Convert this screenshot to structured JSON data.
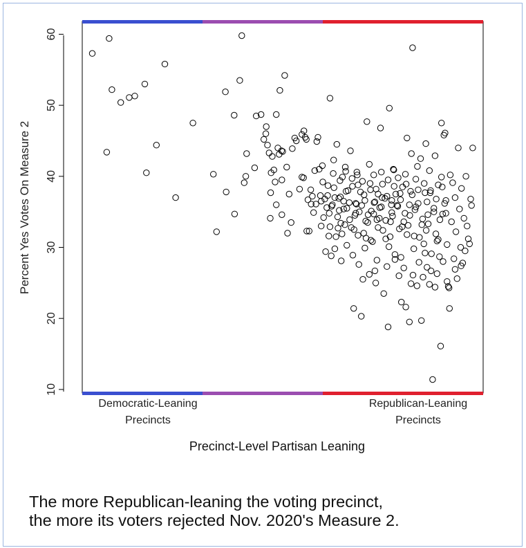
{
  "chart_data": {
    "type": "scatter",
    "xlabel": "Precinct-Level Partisan Leaning",
    "ylabel": "Percent Yes Votes On Measure 2",
    "ylim": [
      9.5,
      61.8
    ],
    "yticks": [
      10,
      20,
      30,
      40,
      50,
      60
    ],
    "x_category_labels": [
      {
        "line1": "Democratic-Leaning",
        "line2": "Precincts"
      },
      {
        "line1": "Republican-Leaning",
        "line2": "Precincts"
      }
    ],
    "x_units": "relative partisan leaning, 0 = most Democratic-leaning, 1 = most Republican-leaning",
    "xlim": [
      0,
      1
    ],
    "axis_color_bands": [
      {
        "from": 0.0,
        "to": 0.3,
        "color": "#3a4fd0"
      },
      {
        "from": 0.3,
        "to": 0.6,
        "color": "#9b4db0"
      },
      {
        "from": 0.6,
        "to": 1.0,
        "color": "#e0202e"
      }
    ],
    "grid": false,
    "points": [
      [
        0.025,
        57.3
      ],
      [
        0.067,
        59.4
      ],
      [
        0.074,
        52.2
      ],
      [
        0.061,
        43.4
      ],
      [
        0.096,
        50.4
      ],
      [
        0.117,
        51.1
      ],
      [
        0.131,
        51.3
      ],
      [
        0.156,
        53.0
      ],
      [
        0.185,
        44.4
      ],
      [
        0.206,
        55.8
      ],
      [
        0.16,
        40.5
      ],
      [
        0.233,
        37.0
      ],
      [
        0.276,
        47.5
      ],
      [
        0.327,
        40.3
      ],
      [
        0.335,
        32.2
      ],
      [
        0.357,
        51.9
      ],
      [
        0.359,
        37.8
      ],
      [
        0.379,
        48.6
      ],
      [
        0.38,
        34.7
      ],
      [
        0.393,
        53.5
      ],
      [
        0.398,
        59.8
      ],
      [
        0.404,
        39.1
      ],
      [
        0.41,
        43.2
      ],
      [
        0.408,
        40.0
      ],
      [
        0.43,
        41.2
      ],
      [
        0.434,
        48.5
      ],
      [
        0.446,
        48.7
      ],
      [
        0.453,
        45.2
      ],
      [
        0.458,
        46.0
      ],
      [
        0.459,
        47.0
      ],
      [
        0.462,
        44.4
      ],
      [
        0.466,
        43.3
      ],
      [
        0.471,
        40.5
      ],
      [
        0.474,
        42.8
      ],
      [
        0.478,
        40.9
      ],
      [
        0.484,
        48.7
      ],
      [
        0.488,
        44.0
      ],
      [
        0.491,
        43.1
      ],
      [
        0.493,
        52.1
      ],
      [
        0.497,
        43.6
      ],
      [
        0.498,
        39.5
      ],
      [
        0.5,
        43.5
      ],
      [
        0.505,
        54.2
      ],
      [
        0.469,
        34.1
      ],
      [
        0.47,
        37.7
      ],
      [
        0.481,
        39.2
      ],
      [
        0.484,
        36.0
      ],
      [
        0.498,
        34.6
      ],
      [
        0.51,
        41.3
      ],
      [
        0.512,
        32.0
      ],
      [
        0.516,
        37.5
      ],
      [
        0.521,
        33.5
      ],
      [
        0.524,
        43.9
      ],
      [
        0.53,
        45.4
      ],
      [
        0.534,
        45.0
      ],
      [
        0.542,
        38.2
      ],
      [
        0.548,
        45.9
      ],
      [
        0.548,
        39.9
      ],
      [
        0.552,
        39.8
      ],
      [
        0.553,
        46.4
      ],
      [
        0.556,
        45.5
      ],
      [
        0.559,
        45.2
      ],
      [
        0.56,
        32.3
      ],
      [
        0.563,
        36.7
      ],
      [
        0.566,
        32.3
      ],
      [
        0.57,
        38.1
      ],
      [
        0.571,
        36.1
      ],
      [
        0.574,
        37.2
      ],
      [
        0.577,
        34.9
      ],
      [
        0.58,
        40.8
      ],
      [
        0.583,
        36.1
      ],
      [
        0.585,
        44.9
      ],
      [
        0.588,
        45.5
      ],
      [
        0.591,
        41.0
      ],
      [
        0.594,
        37.3
      ],
      [
        0.596,
        33.0
      ],
      [
        0.599,
        41.5
      ],
      [
        0.602,
        34.2
      ],
      [
        0.605,
        36.8
      ],
      [
        0.607,
        29.4
      ],
      [
        0.61,
        35.6
      ],
      [
        0.613,
        38.7
      ],
      [
        0.616,
        34.8
      ],
      [
        0.618,
        51.0
      ],
      [
        0.621,
        28.8
      ],
      [
        0.624,
        36.0
      ],
      [
        0.627,
        42.3
      ],
      [
        0.63,
        37.0
      ],
      [
        0.633,
        31.5
      ],
      [
        0.635,
        44.5
      ],
      [
        0.638,
        32.7
      ],
      [
        0.641,
        35.2
      ],
      [
        0.644,
        37.1
      ],
      [
        0.646,
        28.1
      ],
      [
        0.649,
        39.9
      ],
      [
        0.652,
        36.5
      ],
      [
        0.655,
        33.2
      ],
      [
        0.657,
        40.7
      ],
      [
        0.66,
        35.5
      ],
      [
        0.663,
        38.0
      ],
      [
        0.666,
        36.3
      ],
      [
        0.669,
        43.6
      ],
      [
        0.671,
        32.8
      ],
      [
        0.674,
        38.6
      ],
      [
        0.677,
        21.4
      ],
      [
        0.68,
        34.5
      ],
      [
        0.682,
        36.2
      ],
      [
        0.685,
        40.6
      ],
      [
        0.688,
        31.7
      ],
      [
        0.691,
        35.0
      ],
      [
        0.694,
        37.8
      ],
      [
        0.696,
        20.3
      ],
      [
        0.699,
        39.3
      ],
      [
        0.702,
        32.0
      ],
      [
        0.705,
        36.6
      ],
      [
        0.707,
        33.7
      ],
      [
        0.71,
        47.7
      ],
      [
        0.713,
        34.6
      ],
      [
        0.716,
        26.2
      ],
      [
        0.719,
        38.1
      ],
      [
        0.721,
        35.1
      ],
      [
        0.724,
        30.8
      ],
      [
        0.727,
        40.2
      ],
      [
        0.73,
        36.4
      ],
      [
        0.732,
        25.0
      ],
      [
        0.735,
        33.9
      ],
      [
        0.738,
        37.5
      ],
      [
        0.741,
        34.1
      ],
      [
        0.744,
        46.8
      ],
      [
        0.746,
        35.7
      ],
      [
        0.749,
        38.9
      ],
      [
        0.752,
        23.5
      ],
      [
        0.755,
        36.9
      ],
      [
        0.757,
        31.2
      ],
      [
        0.76,
        37.2
      ],
      [
        0.763,
        18.8
      ],
      [
        0.766,
        49.6
      ],
      [
        0.769,
        33.6
      ],
      [
        0.771,
        36.0
      ],
      [
        0.774,
        34.4
      ],
      [
        0.777,
        40.9
      ],
      [
        0.78,
        28.3
      ],
      [
        0.782,
        37.5
      ],
      [
        0.785,
        35.9
      ],
      [
        0.788,
        39.8
      ],
      [
        0.791,
        32.6
      ],
      [
        0.794,
        36.7
      ],
      [
        0.796,
        22.3
      ],
      [
        0.799,
        38.5
      ],
      [
        0.802,
        27.1
      ],
      [
        0.805,
        34.8
      ],
      [
        0.807,
        21.6
      ],
      [
        0.81,
        45.4
      ],
      [
        0.813,
        33.1
      ],
      [
        0.816,
        19.5
      ],
      [
        0.819,
        37.9
      ],
      [
        0.821,
        43.2
      ],
      [
        0.824,
        58.1
      ],
      [
        0.827,
        29.8
      ],
      [
        0.83,
        35.3
      ],
      [
        0.832,
        39.6
      ],
      [
        0.835,
        24.6
      ],
      [
        0.838,
        36.2
      ],
      [
        0.841,
        31.4
      ],
      [
        0.844,
        42.5
      ],
      [
        0.846,
        19.7
      ],
      [
        0.849,
        34.0
      ],
      [
        0.852,
        30.5
      ],
      [
        0.855,
        37.7
      ],
      [
        0.857,
        44.6
      ],
      [
        0.86,
        27.2
      ],
      [
        0.863,
        33.3
      ],
      [
        0.866,
        24.8
      ],
      [
        0.869,
        38.0
      ],
      [
        0.871,
        29.1
      ],
      [
        0.874,
        11.4
      ],
      [
        0.877,
        35.0
      ],
      [
        0.88,
        42.9
      ],
      [
        0.882,
        31.9
      ],
      [
        0.885,
        26.3
      ],
      [
        0.888,
        38.8
      ],
      [
        0.891,
        28.7
      ],
      [
        0.894,
        16.1
      ],
      [
        0.896,
        47.5
      ],
      [
        0.899,
        34.7
      ],
      [
        0.902,
        45.8
      ],
      [
        0.905,
        46.1
      ],
      [
        0.907,
        36.6
      ],
      [
        0.91,
        30.4
      ],
      [
        0.913,
        24.5
      ],
      [
        0.916,
        21.4
      ],
      [
        0.918,
        40.2
      ],
      [
        0.921,
        33.6
      ],
      [
        0.924,
        39.1
      ],
      [
        0.927,
        28.4
      ],
      [
        0.93,
        37.0
      ],
      [
        0.932,
        32.2
      ],
      [
        0.935,
        25.6
      ],
      [
        0.938,
        44.0
      ],
      [
        0.941,
        35.4
      ],
      [
        0.944,
        30.0
      ],
      [
        0.946,
        38.3
      ],
      [
        0.949,
        27.8
      ],
      [
        0.952,
        34.1
      ],
      [
        0.955,
        29.5
      ],
      [
        0.957,
        40.0
      ],
      [
        0.96,
        33.0
      ],
      [
        0.963,
        31.2
      ],
      [
        0.966,
        30.5
      ],
      [
        0.969,
        36.8
      ],
      [
        0.971,
        35.9
      ],
      [
        0.974,
        44.0
      ],
      [
        0.6,
        39.2
      ],
      [
        0.615,
        31.6
      ],
      [
        0.63,
        29.8
      ],
      [
        0.645,
        33.4
      ],
      [
        0.66,
        30.3
      ],
      [
        0.675,
        28.9
      ],
      [
        0.69,
        27.6
      ],
      [
        0.705,
        29.9
      ],
      [
        0.72,
        31.0
      ],
      [
        0.735,
        28.2
      ],
      [
        0.75,
        32.4
      ],
      [
        0.765,
        30.1
      ],
      [
        0.78,
        29.0
      ],
      [
        0.795,
        28.6
      ],
      [
        0.81,
        31.8
      ],
      [
        0.825,
        26.1
      ],
      [
        0.84,
        27.9
      ],
      [
        0.855,
        29.2
      ],
      [
        0.87,
        26.7
      ],
      [
        0.885,
        30.9
      ],
      [
        0.9,
        28.0
      ],
      [
        0.915,
        24.3
      ],
      [
        0.93,
        26.9
      ],
      [
        0.945,
        27.4
      ],
      [
        0.612,
        37.3
      ],
      [
        0.628,
        38.4
      ],
      [
        0.643,
        39.4
      ],
      [
        0.658,
        37.9
      ],
      [
        0.673,
        39.7
      ],
      [
        0.688,
        38.8
      ],
      [
        0.703,
        37.4
      ],
      [
        0.718,
        39.0
      ],
      [
        0.733,
        38.2
      ],
      [
        0.748,
        37.0
      ],
      [
        0.763,
        39.5
      ],
      [
        0.778,
        38.6
      ],
      [
        0.793,
        37.6
      ],
      [
        0.808,
        38.9
      ],
      [
        0.823,
        37.4
      ],
      [
        0.838,
        38.1
      ],
      [
        0.853,
        39.0
      ],
      [
        0.868,
        37.7
      ],
      [
        0.883,
        36.8
      ],
      [
        0.898,
        38.5
      ],
      [
        0.622,
        35.8
      ],
      [
        0.637,
        34.3
      ],
      [
        0.652,
        35.4
      ],
      [
        0.667,
        33.9
      ],
      [
        0.682,
        34.8
      ],
      [
        0.697,
        35.9
      ],
      [
        0.712,
        33.5
      ],
      [
        0.727,
        34.7
      ],
      [
        0.742,
        35.6
      ],
      [
        0.757,
        33.8
      ],
      [
        0.772,
        34.9
      ],
      [
        0.787,
        35.8
      ],
      [
        0.802,
        33.6
      ],
      [
        0.817,
        34.5
      ],
      [
        0.832,
        35.7
      ],
      [
        0.847,
        33.2
      ],
      [
        0.862,
        34.6
      ],
      [
        0.877,
        35.5
      ],
      [
        0.892,
        33.9
      ],
      [
        0.907,
        34.8
      ],
      [
        0.618,
        32.9
      ],
      [
        0.648,
        31.9
      ],
      [
        0.678,
        32.5
      ],
      [
        0.708,
        31.3
      ],
      [
        0.738,
        32.8
      ],
      [
        0.768,
        31.5
      ],
      [
        0.798,
        32.9
      ],
      [
        0.828,
        31.6
      ],
      [
        0.858,
        32.4
      ],
      [
        0.888,
        31.1
      ],
      [
        0.626,
        40.4
      ],
      [
        0.656,
        41.3
      ],
      [
        0.686,
        40.2
      ],
      [
        0.716,
        41.7
      ],
      [
        0.746,
        40.6
      ],
      [
        0.776,
        41.0
      ],
      [
        0.806,
        40.3
      ],
      [
        0.836,
        41.4
      ],
      [
        0.866,
        40.8
      ],
      [
        0.896,
        39.9
      ],
      [
        0.7,
        25.5
      ],
      [
        0.73,
        26.7
      ],
      [
        0.76,
        27.3
      ],
      [
        0.79,
        26.0
      ],
      [
        0.82,
        24.9
      ],
      [
        0.85,
        25.8
      ],
      [
        0.88,
        24.4
      ],
      [
        0.91,
        25.2
      ],
      [
        0.596,
        36.5
      ],
      [
        0.64,
        36.9
      ],
      [
        0.684,
        36.1
      ],
      [
        0.728,
        36.3
      ],
      [
        0.772,
        36.6
      ],
      [
        0.816,
        36.0
      ],
      [
        0.86,
        36.4
      ],
      [
        0.904,
        36.2
      ]
    ]
  },
  "caption": {
    "line1": "The more Republican-leaning the voting precinct,",
    "line2": "the more its voters rejected Nov. 2020's Measure 2."
  }
}
